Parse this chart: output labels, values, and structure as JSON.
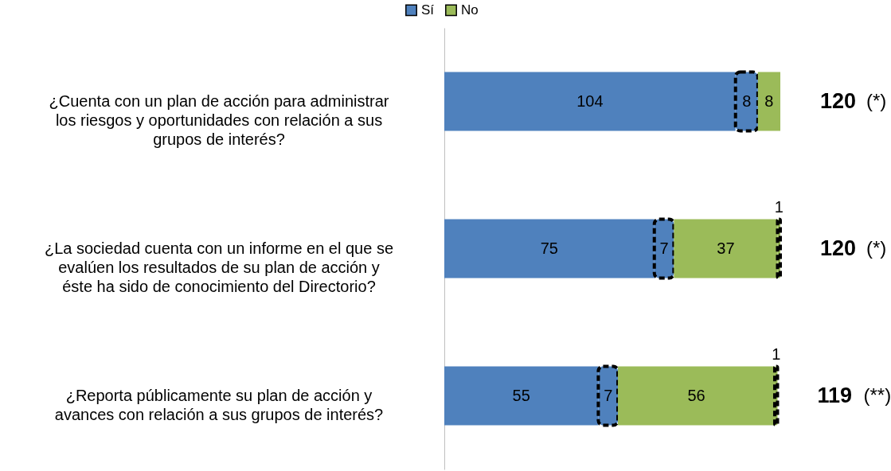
{
  "chart_data": {
    "type": "bar",
    "orientation": "horizontal",
    "stacked": true,
    "categories": [
      "¿Cuenta con un plan de acción para administrar los riesgos y oportunidades con relación a sus grupos de interés?",
      "¿La sociedad cuenta con un informe en el que se evalúen los resultados de su plan de acción y éste ha sido de conocimiento del Directorio?",
      "¿Reporta públicamente su plan de acción y avances con relación a sus grupos de interés?"
    ],
    "series": [
      {
        "name": "Sí",
        "color": "#4f81bd",
        "values": [
          104,
          75,
          55
        ]
      },
      {
        "color": "#4f81bd",
        "line_style": "dashed",
        "values": [
          8,
          7,
          7
        ]
      },
      {
        "name": "No",
        "color": "#9bbb59",
        "values": [
          8,
          37,
          56
        ]
      },
      {
        "color": "#9bbb59",
        "line_style": "dashed",
        "values": [
          null,
          1,
          1
        ]
      }
    ],
    "data_labels": true,
    "totals": [
      "120",
      "120",
      "119"
    ],
    "annotations": [
      "(*)",
      "(*)",
      "(**)"
    ],
    "legend": "top",
    "grid": false
  }
}
